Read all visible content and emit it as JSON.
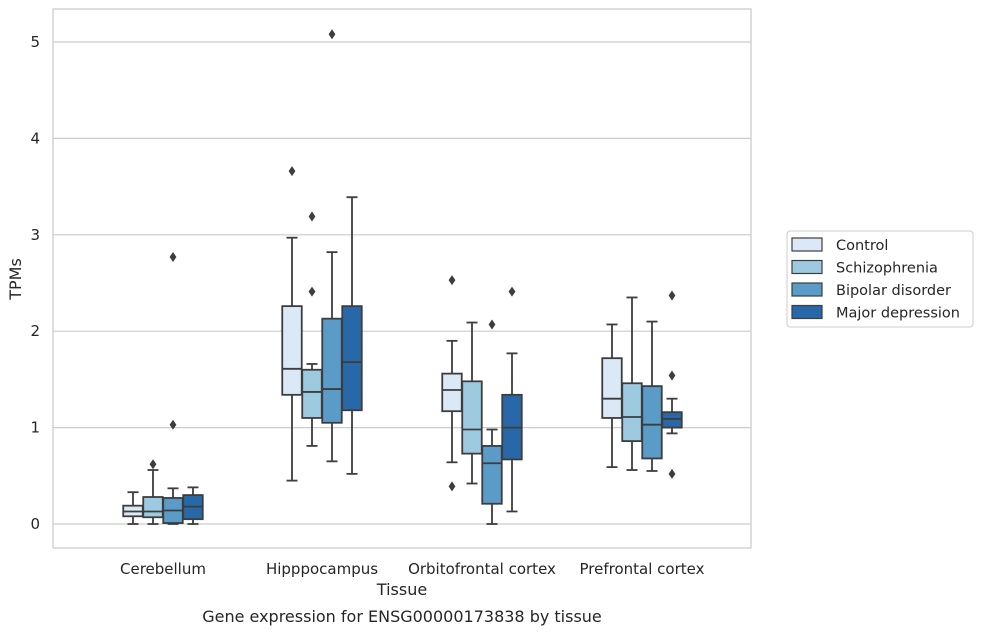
{
  "chart_data": {
    "type": "box",
    "xlabel": "Tissue",
    "ylabel": "TPMs",
    "caption": "Gene expression for ENSG00000173838 by tissue",
    "ylim": [
      -0.25,
      5.35
    ],
    "yticks": [
      0,
      1,
      2,
      3,
      4,
      5
    ],
    "grid": "horizontal",
    "legend_position": "right",
    "categories": [
      "Cerebellum",
      "Hipppocampus",
      "Orbitofrontal cortex",
      "Prefrontal cortex"
    ],
    "series": [
      {
        "name": "Control",
        "color": "#dbe9f6",
        "boxes": [
          {
            "min": 0.0,
            "q1": 0.08,
            "median": 0.13,
            "q3": 0.19,
            "max": 0.33,
            "outliers": []
          },
          {
            "min": 0.45,
            "q1": 1.34,
            "median": 1.61,
            "q3": 2.26,
            "max": 2.97,
            "outliers": [
              3.66
            ]
          },
          {
            "min": 0.64,
            "q1": 1.17,
            "median": 1.39,
            "q3": 1.56,
            "max": 1.9,
            "outliers": [
              2.53,
              0.39
            ]
          },
          {
            "min": 0.59,
            "q1": 1.1,
            "median": 1.3,
            "q3": 1.72,
            "max": 2.07,
            "outliers": []
          }
        ]
      },
      {
        "name": "Schizophrenia",
        "color": "#9ecae1",
        "boxes": [
          {
            "min": 0.0,
            "q1": 0.07,
            "median": 0.13,
            "q3": 0.28,
            "max": 0.56,
            "outliers": [
              0.62
            ]
          },
          {
            "min": 0.81,
            "q1": 1.1,
            "median": 1.37,
            "q3": 1.6,
            "max": 1.66,
            "outliers": [
              3.19,
              2.41
            ]
          },
          {
            "min": 0.42,
            "q1": 0.73,
            "median": 0.98,
            "q3": 1.48,
            "max": 2.09,
            "outliers": []
          },
          {
            "min": 0.56,
            "q1": 0.86,
            "median": 1.11,
            "q3": 1.46,
            "max": 2.35,
            "outliers": []
          }
        ]
      },
      {
        "name": "Bipolar disorder",
        "color": "#5a9bc8",
        "boxes": [
          {
            "min": 0.0,
            "q1": 0.01,
            "median": 0.14,
            "q3": 0.27,
            "max": 0.37,
            "outliers": [
              2.77,
              1.03
            ]
          },
          {
            "min": 0.65,
            "q1": 1.05,
            "median": 1.4,
            "q3": 2.13,
            "max": 2.82,
            "outliers": [
              5.08
            ]
          },
          {
            "min": 0.0,
            "q1": 0.21,
            "median": 0.63,
            "q3": 0.81,
            "max": 0.98,
            "outliers": [
              2.07
            ]
          },
          {
            "min": 0.55,
            "q1": 0.68,
            "median": 1.03,
            "q3": 1.43,
            "max": 2.1,
            "outliers": []
          }
        ]
      },
      {
        "name": "Major depression",
        "color": "#2868a8",
        "boxes": [
          {
            "min": 0.0,
            "q1": 0.05,
            "median": 0.18,
            "q3": 0.3,
            "max": 0.38,
            "outliers": []
          },
          {
            "min": 0.52,
            "q1": 1.18,
            "median": 1.68,
            "q3": 2.26,
            "max": 3.39,
            "outliers": []
          },
          {
            "min": 0.13,
            "q1": 0.67,
            "median": 1.0,
            "q3": 1.34,
            "max": 1.77,
            "outliers": [
              2.41
            ]
          },
          {
            "min": 0.94,
            "q1": 1.0,
            "median": 1.09,
            "q3": 1.16,
            "max": 1.3,
            "outliers": [
              2.37,
              1.54,
              0.52
            ]
          }
        ]
      }
    ]
  }
}
